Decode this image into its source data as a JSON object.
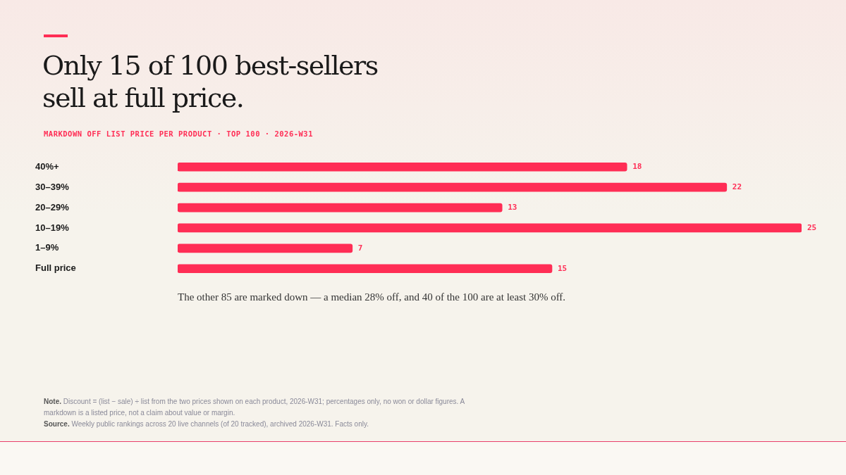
{
  "chart_data": {
    "type": "bar",
    "orientation": "horizontal",
    "title": "Only 15 of 100 best-sellers sell at full price.",
    "subtitle": "MARKDOWN OFF LIST PRICE PER PRODUCT · TOP 100 · 2026-W31",
    "categories": [
      "40%+",
      "30–39%",
      "20–29%",
      "10–19%",
      "1–9%",
      "Full price"
    ],
    "values": [
      18,
      22,
      13,
      25,
      7,
      15
    ],
    "color": "#ff2d55",
    "data_labels": true,
    "grid": false,
    "legend": false,
    "annotations": [
      "The other 85 are marked down — a median 28% off, and 40 of the 100 are at least 30% off.",
      "Note. Discount = (list − sale) ÷ list from the two prices shown on each product, 2026-W31; percentages only, no won or dollar figures. A markdown is a listed price, not a claim about value or margin.",
      "Source. Weekly public rankings across 20 live channels (of 20 tracked), archived 2026-W31. Facts only."
    ]
  }
}
